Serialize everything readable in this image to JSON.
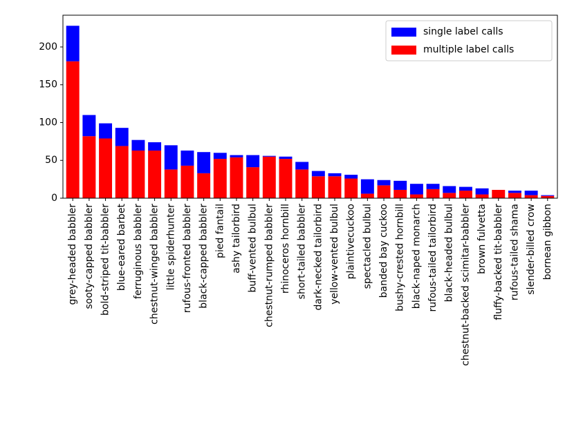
{
  "chart_data": {
    "type": "bar",
    "stacked": true,
    "categories": [
      "grey-headed babbler",
      "sooty-capped babbler",
      "bold-striped tit-babbler",
      "blue-eared barbet",
      "ferruginous babbler",
      "chestnut-winged babbler",
      "little spiderhunter",
      "rufous-fronted babbler",
      "black-capped babbler",
      "pied fantail",
      "ashy tailorbird",
      "buff-vented bulbul",
      "chestnut-rumped babbler",
      "rhinoceros hornbill",
      "short-tailed babbler",
      "dark-necked tailorbird",
      "yellow-vented bulbul",
      "plaintivecuckoo",
      "spectacled bulbul",
      "banded bay cuckoo",
      "bushy-crested hornbill",
      "black-naped monarch",
      "rufous-tailed tailorbird",
      "black-headed bulbul",
      "chestnut-backed scimitar-babbler",
      "brown fulvetta",
      "fluffy-backed tit-babbler",
      "rufous-tailed shama",
      "slender-billed crow",
      "bornean gibbon"
    ],
    "series": [
      {
        "name": "single label calls",
        "color": "#0000ff",
        "values": [
          47,
          28,
          20,
          24,
          14,
          11,
          32,
          20,
          28,
          8,
          3,
          16,
          1,
          3,
          10,
          7,
          4,
          5,
          19,
          7,
          12,
          14,
          7,
          9,
          5,
          8,
          0,
          3,
          6,
          1
        ]
      },
      {
        "name": "multiple label calls",
        "color": "#ff0000",
        "values": [
          181,
          82,
          79,
          69,
          63,
          63,
          38,
          43,
          33,
          52,
          54,
          41,
          55,
          52,
          38,
          29,
          29,
          26,
          6,
          17,
          11,
          5,
          12,
          7,
          10,
          5,
          11,
          7,
          4,
          3
        ]
      }
    ],
    "ylim": [
      0,
      242
    ],
    "yticks": [
      0,
      50,
      100,
      150,
      200
    ],
    "legend": "upper right"
  }
}
